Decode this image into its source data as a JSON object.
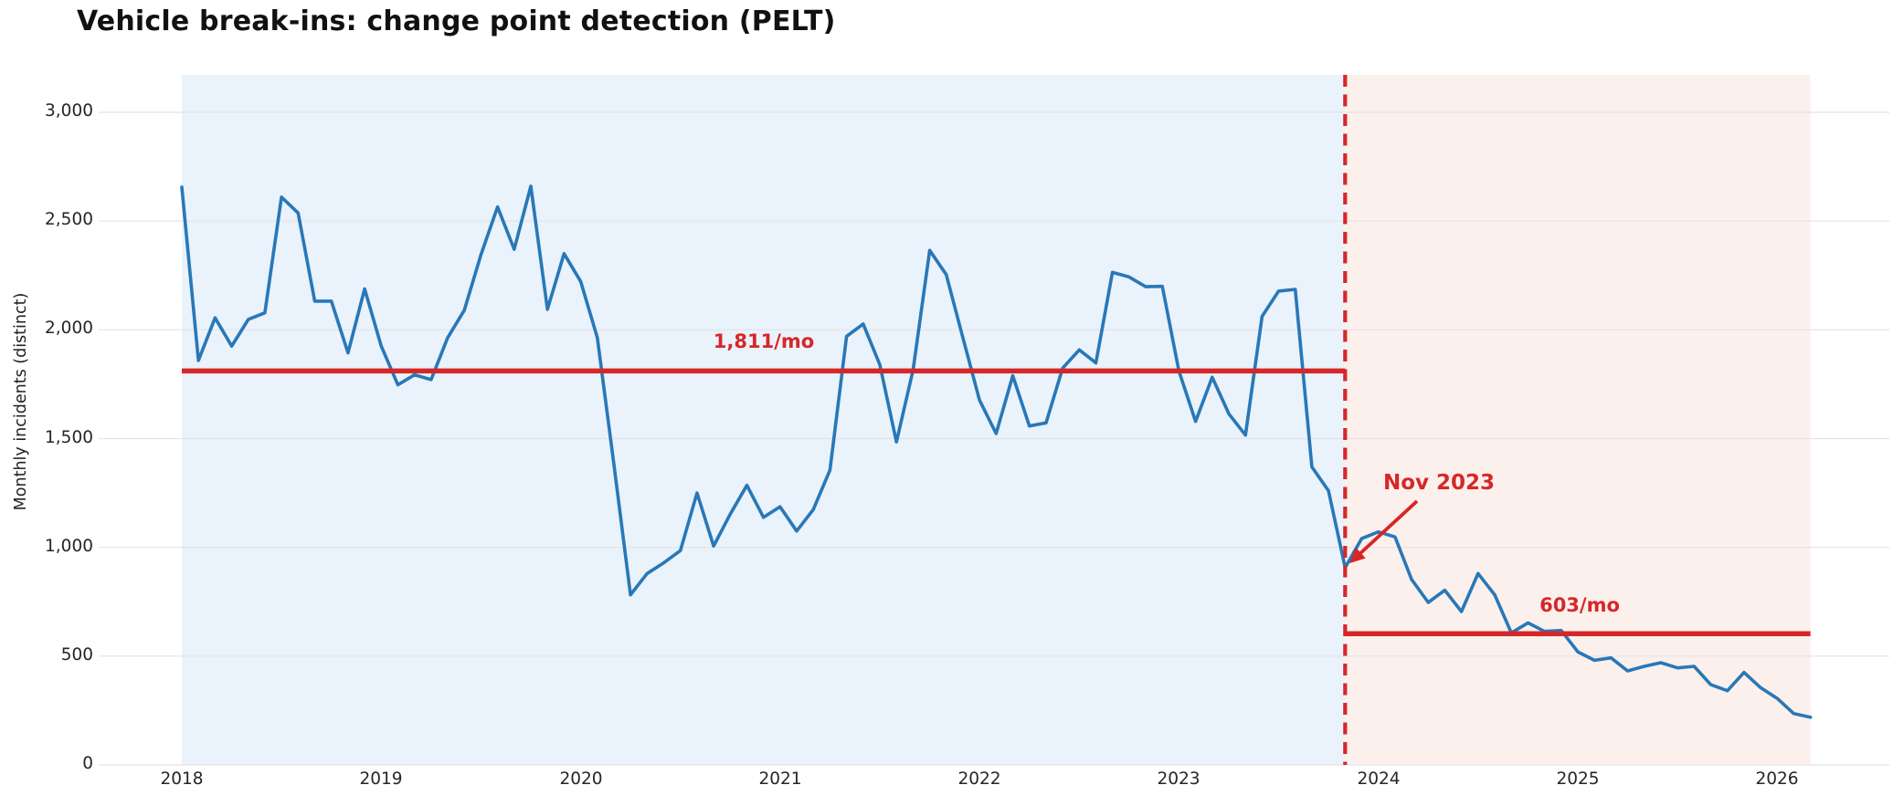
{
  "title": "Vehicle break-ins: change point detection (PELT)",
  "y_axis": {
    "label": "Monthly incidents (distinct)",
    "tick_values": [
      0,
      500,
      1000,
      1500,
      2000,
      2500,
      3000
    ],
    "tick_labels": [
      "0",
      "500",
      "1,000",
      "1,500",
      "2,000",
      "2,500",
      "3,000"
    ]
  },
  "x_axis": {
    "tick_labels": [
      "2018",
      "2019",
      "2020",
      "2021",
      "2022",
      "2023",
      "2024",
      "2025",
      "2026"
    ]
  },
  "chart_data": {
    "type": "line",
    "title": "Vehicle break-ins: change point detection (PELT)",
    "xlabel": "",
    "ylabel": "Monthly incidents (distinct)",
    "x_monthly_start": "2018-01",
    "x_monthly_end": "2026-03",
    "x_tick_labels": [
      "2018",
      "2019",
      "2020",
      "2021",
      "2022",
      "2023",
      "2024",
      "2025",
      "2026"
    ],
    "ylim": [
      0,
      3170
    ],
    "grid": true,
    "legend_position": "none",
    "series": [
      {
        "name": "Monthly incidents (distinct)",
        "values": [
          2656,
          1859,
          2055,
          1925,
          2048,
          2078,
          2610,
          2537,
          2132,
          2132,
          1894,
          2188,
          1925,
          1747,
          1793,
          1771,
          1964,
          2090,
          2345,
          2565,
          2370,
          2660,
          2094,
          2350,
          2222,
          1964,
          1383,
          782,
          880,
          929,
          985,
          1250,
          1006,
          1153,
          1285,
          1138,
          1187,
          1075,
          1174,
          1355,
          1970,
          2027,
          1840,
          1485,
          1815,
          2365,
          2254,
          1964,
          1677,
          1523,
          1789,
          1558,
          1572,
          1824,
          1908,
          1848,
          2264,
          2243,
          2198,
          2200,
          1810,
          1579,
          1782,
          1614,
          1516,
          2062,
          2178,
          2186,
          1370,
          1260,
          907,
          1041,
          1071,
          1048,
          852,
          747,
          803,
          705,
          880,
          782,
          607,
          653,
          614,
          618,
          520,
          481,
          492,
          432,
          453,
          470,
          446,
          453,
          369,
          341,
          425,
          355,
          306,
          236,
          219
        ]
      }
    ],
    "change_point": {
      "label": "Nov 2023",
      "month_index": 70,
      "value": 907
    },
    "segments": [
      {
        "label": "1,811/mo",
        "mean_value": 1811,
        "start_month_index": 0,
        "end_month_index": 70
      },
      {
        "label": "603/mo",
        "mean_value": 603,
        "start_month_index": 70,
        "end_month_index": 98
      }
    ]
  },
  "colors": {
    "line": "#2878b8",
    "red": "#d62728",
    "pre_band": "#eaf2fb",
    "post_band": "#fcf0ed",
    "grid": "#e4e4e4",
    "title_text": "#111111",
    "tick_text": "#262626"
  }
}
